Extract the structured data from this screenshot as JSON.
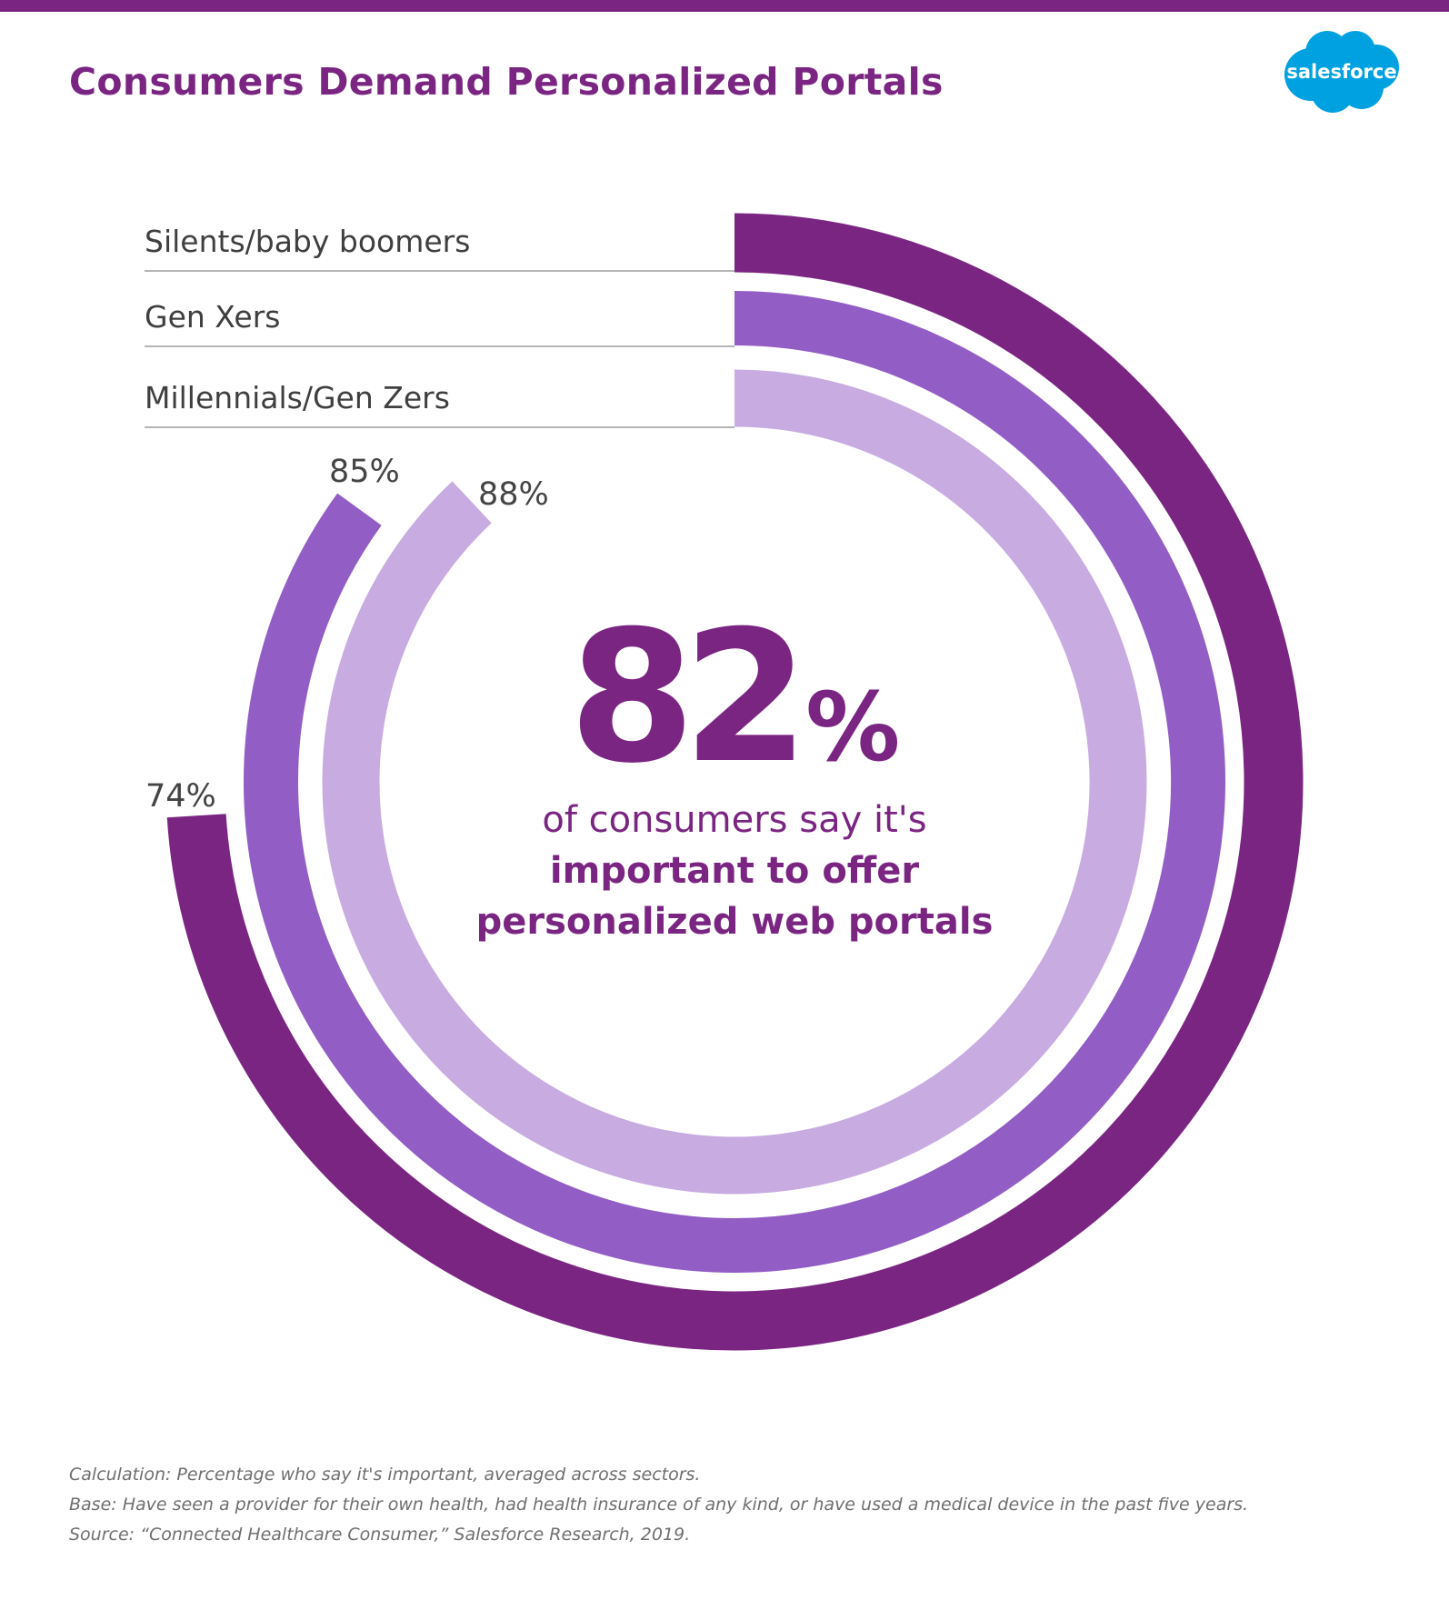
{
  "header": {
    "title": "Consumers Demand Personalized Portals",
    "logo_text": "salesforce",
    "brand_color": "#7a2582",
    "logo_color": "#00a1e0"
  },
  "headline_stat": {
    "value": "82",
    "unit": "%",
    "line1": "of consumers say it's",
    "line2": "important to offer",
    "line3": "personalized web portals"
  },
  "chart_data": {
    "type": "radial-bar",
    "title": "Consumers Demand Personalized Portals",
    "max": 100,
    "series": [
      {
        "name": "Silents/baby boomers",
        "value": 74,
        "label": "74%",
        "color": "#7a2582"
      },
      {
        "name": "Gen Xers",
        "value": 85,
        "label": "85%",
        "color": "#925dc4"
      },
      {
        "name": "Millennials/Gen Zers",
        "value": 88,
        "label": "88%",
        "color": "#c8abe1"
      }
    ],
    "direction": "clockwise-from-top",
    "legend_placement": "top-left"
  },
  "footnotes": [
    "Calculation: Percentage who say it's important, averaged across sectors.",
    "Base: Have seen a provider for their own health, had health insurance of any kind, or have used a medical device in the past five years.",
    "Source: “Connected Healthcare Consumer,” Salesforce Research, 2019."
  ]
}
